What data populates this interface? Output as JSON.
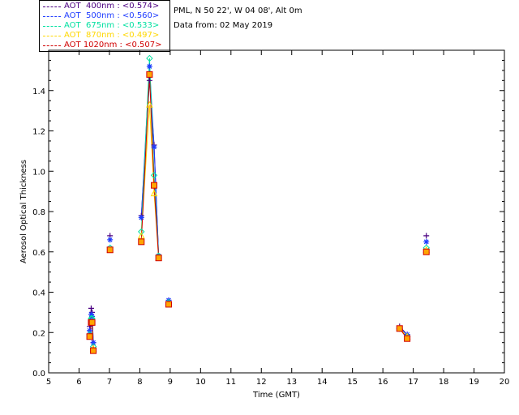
{
  "header": {
    "location": "PML, N 50 22', W 04 08', Alt 0m",
    "date": "Data from: 02 May 2019"
  },
  "chart_data": {
    "type": "scatter",
    "xlabel": "Time (GMT)",
    "ylabel": "Aerosol Optical Thickness",
    "xlim": [
      5,
      20
    ],
    "ylim": [
      0.0,
      1.6
    ],
    "xticks": [
      5,
      6,
      7,
      8,
      9,
      10,
      11,
      12,
      13,
      14,
      15,
      16,
      17,
      18,
      19,
      20
    ],
    "yticks": [
      0.0,
      0.2,
      0.4,
      0.6,
      0.8,
      1.0,
      1.2,
      1.4
    ],
    "grid": false,
    "legend_position": "top-left (outside plot)",
    "series": [
      {
        "name": "AOT  400nm : <0.574>",
        "color": "#4b0082",
        "marker": "plus",
        "x": [
          6.35,
          6.4,
          6.43,
          6.47,
          7.02,
          8.05,
          8.32,
          8.47,
          8.62,
          8.95,
          16.55,
          16.8,
          17.43
        ],
        "y": [
          0.23,
          0.32,
          0.3,
          0.15,
          0.68,
          0.78,
          1.45,
          1.13,
          0.58,
          0.36,
          0.23,
          0.19,
          0.68
        ]
      },
      {
        "name": "AOT  500nm : <0.560>",
        "color": "#1e3cff",
        "marker": "star",
        "x": [
          6.35,
          6.4,
          6.43,
          6.47,
          7.02,
          8.05,
          8.32,
          8.47,
          8.62,
          8.95,
          16.55,
          16.8,
          17.43
        ],
        "y": [
          0.21,
          0.29,
          0.28,
          0.15,
          0.66,
          0.77,
          1.52,
          1.12,
          0.58,
          0.36,
          0.22,
          0.19,
          0.65
        ]
      },
      {
        "name": "AOT  675nm : <0.533>",
        "color": "#00e0a0",
        "marker": "diamond",
        "x": [
          6.35,
          6.4,
          6.43,
          6.47,
          7.02,
          8.05,
          8.32,
          8.47,
          8.62,
          8.95,
          16.55,
          16.8,
          17.43
        ],
        "y": [
          0.19,
          0.27,
          0.27,
          0.13,
          0.62,
          0.7,
          1.56,
          0.98,
          0.58,
          0.35,
          0.22,
          0.18,
          0.62
        ]
      },
      {
        "name": "AOT  870nm : <0.497>",
        "color": "#ffd700",
        "marker": "triangle",
        "x": [
          6.35,
          6.4,
          6.43,
          6.47,
          7.02,
          8.05,
          8.32,
          8.47,
          8.62,
          8.95,
          16.55,
          16.8,
          17.43
        ],
        "y": [
          0.18,
          0.25,
          0.25,
          0.12,
          0.61,
          0.68,
          1.33,
          0.89,
          0.57,
          0.34,
          0.22,
          0.18,
          0.61
        ]
      },
      {
        "name": "AOT 1020nm : <0.507>",
        "color": "#d00000",
        "marker": "square",
        "x": [
          6.35,
          6.4,
          6.43,
          6.47,
          7.02,
          8.05,
          8.32,
          8.47,
          8.62,
          8.95,
          16.55,
          16.8,
          17.43
        ],
        "y": [
          0.18,
          0.25,
          0.25,
          0.11,
          0.61,
          0.65,
          1.48,
          0.93,
          0.57,
          0.34,
          0.22,
          0.17,
          0.6
        ]
      }
    ],
    "connected_segments": [
      [
        0,
        3
      ],
      [
        5,
        8
      ],
      [
        10,
        11
      ]
    ],
    "marker_orange_fill": "#ffa500"
  }
}
